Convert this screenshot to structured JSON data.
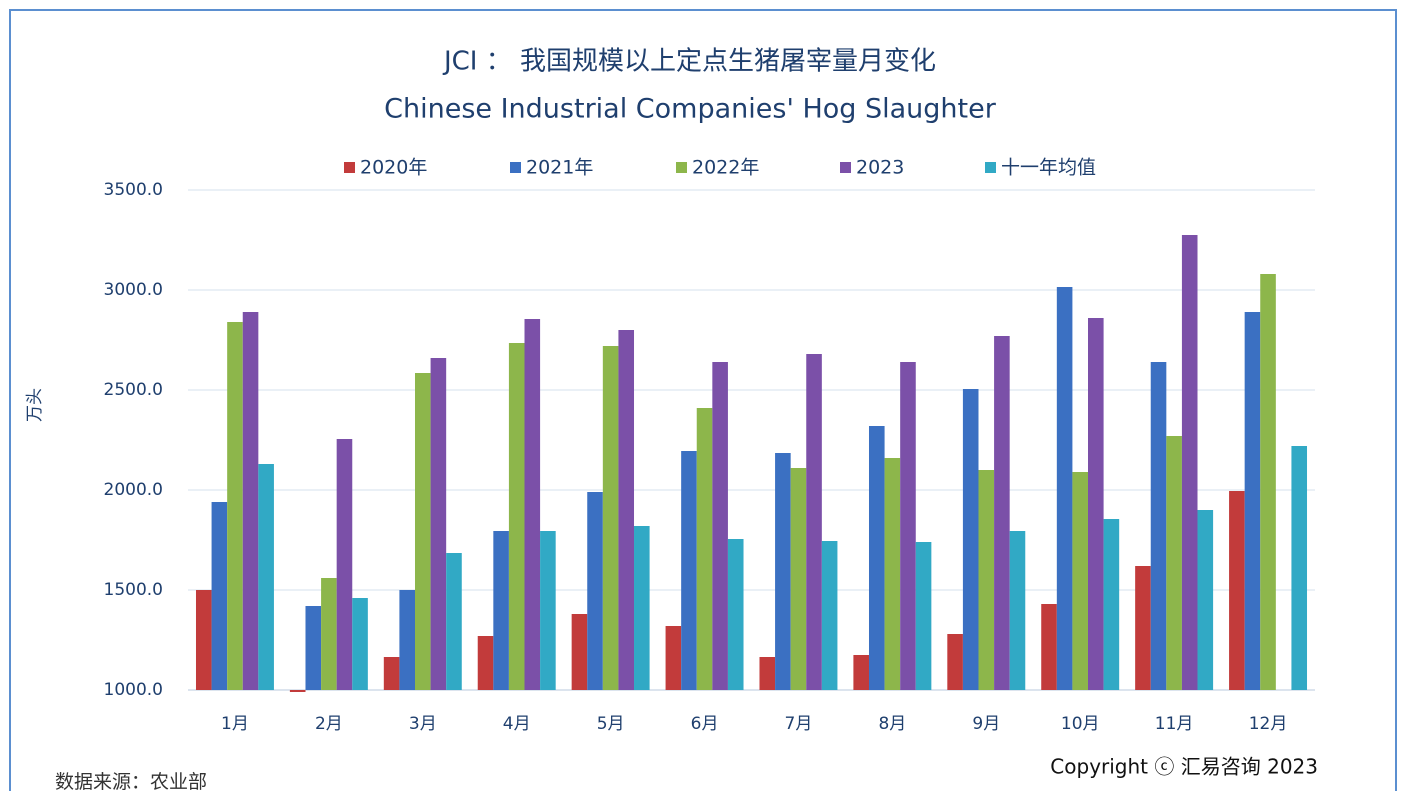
{
  "chart_data": {
    "type": "bar",
    "title": "JCI ： 我国规模以上定点生猪屠宰量月变化",
    "subtitle": "Chinese Industrial Companies' Hog Slaughter",
    "y_label": "万头",
    "source": "数据来源：农业部",
    "copyright": "Copyright ⓒ 汇易咨询 2023",
    "categories": [
      "1月",
      "2月",
      "3月",
      "4月",
      "5月",
      "6月",
      "7月",
      "8月",
      "9月",
      "10月",
      "11月",
      "12月"
    ],
    "series": [
      {
        "name": "2020年",
        "color": "#c23b3b",
        "values": [
          1500,
          990,
          1165,
          1270,
          1380,
          1320,
          1165,
          1175,
          1280,
          1430,
          1620,
          1995
        ]
      },
      {
        "name": "2021年",
        "color": "#3b70c2",
        "values": [
          1940,
          1420,
          1500,
          1795,
          1990,
          2195,
          2185,
          2320,
          2505,
          3015,
          2640,
          2890
        ]
      },
      {
        "name": "2022年",
        "color": "#8db64b",
        "values": [
          2840,
          1560,
          2585,
          2735,
          2720,
          2410,
          2110,
          2160,
          2100,
          2090,
          2270,
          3080
        ]
      },
      {
        "name": "2023",
        "color": "#7b50a8",
        "values": [
          2890,
          2255,
          2660,
          2855,
          2800,
          2640,
          2680,
          2640,
          2770,
          2860,
          3275,
          null
        ]
      },
      {
        "name": "十一年均值",
        "color": "#31a9c5",
        "values": [
          2130,
          1460,
          1685,
          1795,
          1820,
          1755,
          1745,
          1740,
          1795,
          1855,
          1900,
          2220
        ]
      }
    ],
    "ylim": [
      1000,
      3500
    ],
    "yticks": [
      {
        "value": 1000,
        "label": "1000.0"
      },
      {
        "value": 1500,
        "label": "1500.0"
      },
      {
        "value": 2000,
        "label": "2000.0"
      },
      {
        "value": 2500,
        "label": "2500.0"
      },
      {
        "value": 3000,
        "label": "3000.0"
      },
      {
        "value": 3500,
        "label": "3500.0"
      }
    ],
    "grid": true,
    "legend": "top"
  }
}
